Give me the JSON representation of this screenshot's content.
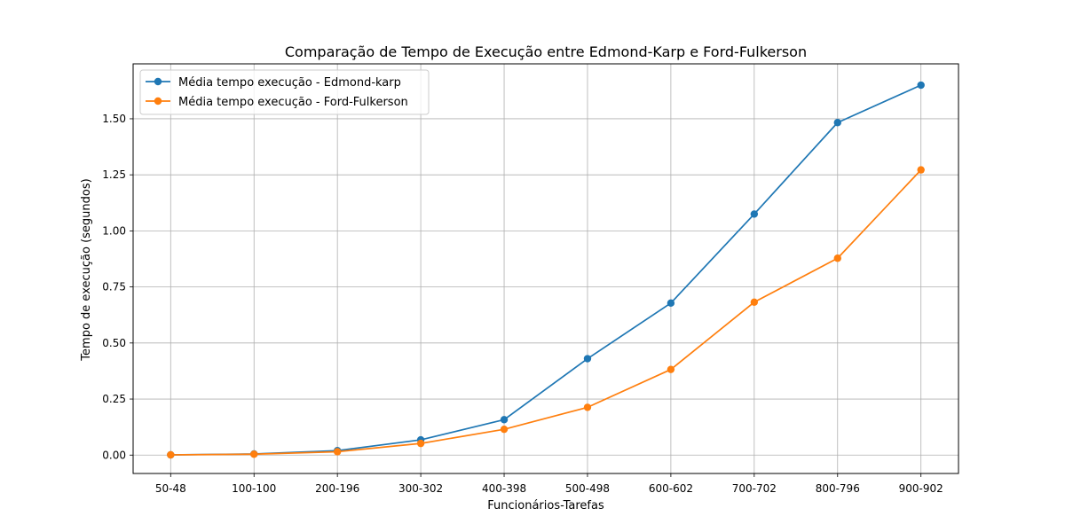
{
  "chart_data": {
    "type": "line",
    "title": "Comparação de Tempo de Execução entre Edmond-Karp e Ford-Fulkerson",
    "xlabel": "Funcionários-Tarefas",
    "ylabel": "Tempo de execução (segundos)",
    "categories": [
      "50-48",
      "100-100",
      "200-196",
      "300-302",
      "400-398",
      "500-498",
      "600-602",
      "700-702",
      "800-796",
      "900-902"
    ],
    "yticks": [
      "0.00",
      "0.25",
      "0.50",
      "0.75",
      "1.00",
      "1.25",
      "1.50"
    ],
    "ylim": [
      -0.082,
      1.745
    ],
    "grid": true,
    "legend_position": "upper left",
    "series": [
      {
        "name": "Média tempo execução - Edmond-karp",
        "color": "#1f77b4",
        "marker": "circle",
        "values": [
          0.001,
          0.005,
          0.02,
          0.068,
          0.158,
          0.43,
          0.678,
          1.075,
          1.483,
          1.65
        ]
      },
      {
        "name": "Média tempo execução - Ford-Fulkerson",
        "color": "#ff7f0e",
        "marker": "circle",
        "values": [
          0.001,
          0.004,
          0.015,
          0.052,
          0.115,
          0.213,
          0.382,
          0.682,
          0.878,
          1.272
        ]
      }
    ]
  }
}
